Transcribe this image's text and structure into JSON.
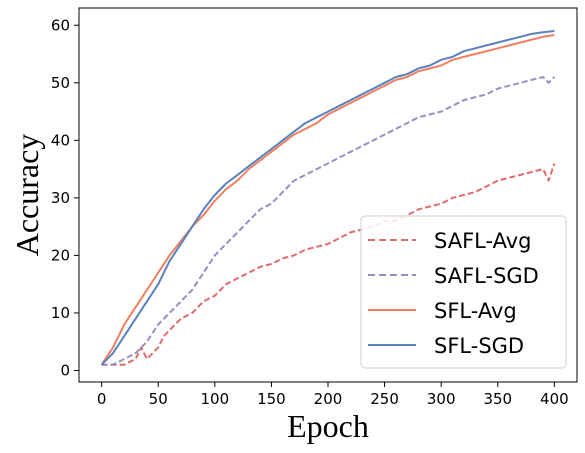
{
  "chart_data": {
    "type": "line",
    "xlabel": "Epoch",
    "ylabel": "Accuracy",
    "xlim": [
      -20,
      420
    ],
    "ylim": [
      -2,
      63
    ],
    "xticks": [
      0,
      50,
      100,
      150,
      200,
      250,
      300,
      350,
      400
    ],
    "yticks": [
      0,
      10,
      20,
      30,
      40,
      50,
      60
    ],
    "grid": false,
    "legend_position": "bottom-right",
    "series": [
      {
        "name": "SAFL-Avg",
        "color": "#e06c6c",
        "dash": "dashed",
        "x": [
          0,
          10,
          20,
          30,
          35,
          40,
          45,
          50,
          55,
          60,
          65,
          70,
          80,
          90,
          100,
          110,
          120,
          130,
          140,
          150,
          160,
          170,
          180,
          190,
          200,
          210,
          220,
          230,
          240,
          250,
          260,
          270,
          280,
          290,
          300,
          310,
          320,
          330,
          340,
          350,
          360,
          370,
          380,
          390,
          395,
          400
        ],
        "y": [
          1,
          1,
          1,
          2,
          4,
          2,
          3,
          4,
          6,
          7,
          8,
          9,
          10,
          12,
          13,
          15,
          16,
          17,
          18,
          18.5,
          19.5,
          20,
          21,
          21.5,
          22,
          23,
          24,
          24.5,
          25,
          26,
          26,
          27,
          28,
          28.5,
          29,
          30,
          30.5,
          31,
          32,
          33,
          33.5,
          34,
          34.5,
          35,
          33,
          36
        ]
      },
      {
        "name": "SAFL-SGD",
        "color": "#9390c4",
        "dash": "dashed",
        "x": [
          0,
          10,
          20,
          30,
          40,
          50,
          60,
          70,
          80,
          90,
          100,
          110,
          120,
          130,
          140,
          150,
          160,
          170,
          180,
          190,
          200,
          210,
          220,
          230,
          240,
          250,
          260,
          270,
          280,
          290,
          300,
          310,
          320,
          330,
          340,
          350,
          360,
          370,
          380,
          390,
          395,
          400
        ],
        "y": [
          1,
          1,
          2,
          3,
          5,
          8,
          10,
          12,
          14,
          17,
          20,
          22,
          24,
          26,
          28,
          29,
          31,
          33,
          34,
          35,
          36,
          37,
          38,
          39,
          40,
          41,
          42,
          43,
          44,
          44.5,
          45,
          46,
          47,
          47.5,
          48,
          49,
          49.5,
          50,
          50.5,
          51,
          50,
          51
        ]
      },
      {
        "name": "SFL-Avg",
        "color": "#f08060",
        "dash": "solid",
        "x": [
          0,
          10,
          20,
          30,
          40,
          50,
          60,
          70,
          80,
          90,
          100,
          110,
          120,
          130,
          140,
          150,
          160,
          170,
          180,
          190,
          200,
          210,
          220,
          230,
          240,
          250,
          260,
          270,
          280,
          290,
          300,
          310,
          320,
          330,
          340,
          350,
          360,
          370,
          380,
          390,
          400
        ],
        "y": [
          1,
          4,
          8,
          11,
          14,
          17,
          20,
          22.5,
          25,
          27,
          29.5,
          31.5,
          33,
          35,
          36.5,
          38,
          39.5,
          41,
          42,
          43,
          44.5,
          45.5,
          46.5,
          47.5,
          48.5,
          49.5,
          50.5,
          51,
          52,
          52.5,
          53,
          54,
          54.5,
          55,
          55.5,
          56,
          56.5,
          57,
          57.5,
          58,
          58.3
        ]
      },
      {
        "name": "SFL-SGD",
        "color": "#5a82c0",
        "dash": "solid",
        "x": [
          0,
          10,
          20,
          30,
          40,
          50,
          60,
          70,
          80,
          90,
          100,
          110,
          120,
          130,
          140,
          150,
          160,
          170,
          180,
          190,
          200,
          210,
          220,
          230,
          240,
          250,
          260,
          270,
          280,
          290,
          300,
          310,
          320,
          330,
          340,
          350,
          360,
          370,
          380,
          390,
          400
        ],
        "y": [
          1,
          3,
          6,
          9,
          12,
          15,
          19,
          22,
          25,
          28,
          30.5,
          32.5,
          34,
          35.5,
          37,
          38.5,
          40,
          41.5,
          43,
          44,
          45,
          46,
          47,
          48,
          49,
          50,
          51,
          51.5,
          52.5,
          53,
          54,
          54.5,
          55.5,
          56,
          56.5,
          57,
          57.5,
          58,
          58.5,
          58.8,
          59
        ]
      }
    ]
  }
}
